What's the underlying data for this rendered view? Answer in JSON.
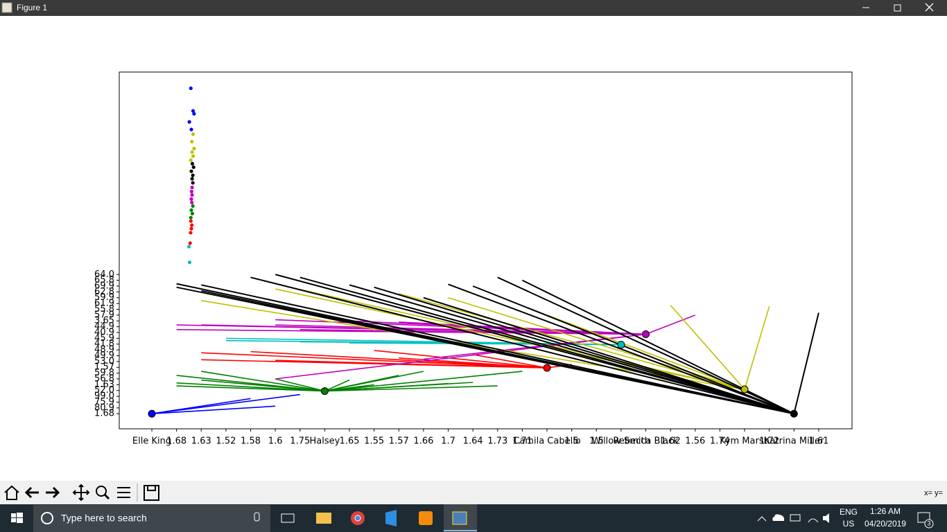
{
  "window": {
    "title": "Figure 1"
  },
  "chart_data": {
    "type": "star",
    "xlim": [
      -1.32,
      28.35
    ],
    "ylim": [
      -2.6,
      58.9
    ],
    "xticks": [
      {
        "value": 0,
        "label": "Elle King"
      },
      {
        "value": 1,
        "label": "1.68"
      },
      {
        "value": 2,
        "label": "1.63"
      },
      {
        "value": 3,
        "label": "1.52"
      },
      {
        "value": 4,
        "label": "1.58"
      },
      {
        "value": 5,
        "label": "1.6"
      },
      {
        "value": 6,
        "label": "1.75"
      },
      {
        "value": 7,
        "label": "Halsey"
      },
      {
        "value": 8,
        "label": "1.65"
      },
      {
        "value": 9,
        "label": "1.55"
      },
      {
        "value": 10,
        "label": "1.57"
      },
      {
        "value": 11,
        "label": "1.66"
      },
      {
        "value": 12,
        "label": "1.7"
      },
      {
        "value": 13,
        "label": "1.64"
      },
      {
        "value": 14,
        "label": "1.73"
      },
      {
        "value": 15,
        "label": "1.71"
      },
      {
        "value": 16,
        "label": "Camila Cabello"
      },
      {
        "value": 17,
        "label": "1.5"
      },
      {
        "value": 18,
        "label": "1.5"
      },
      {
        "value": 19,
        "label": "Willow Smith"
      },
      {
        "value": 20,
        "label": "Rebecca Black"
      },
      {
        "value": 21,
        "label": "1.62"
      },
      {
        "value": 22,
        "label": "1.56"
      },
      {
        "value": 23,
        "label": "1.74"
      },
      {
        "value": 24,
        "label": "Kym Marsh"
      },
      {
        "value": 25,
        "label": "1.72"
      },
      {
        "value": 26,
        "label": "Katrina Miller"
      },
      {
        "value": 27,
        "label": "1.61"
      }
    ],
    "yticks": [
      {
        "value": 0,
        "label": "1.68"
      },
      {
        "value": 1,
        "label": "80.9"
      },
      {
        "value": 2,
        "label": "75.9"
      },
      {
        "value": 3,
        "label": "99.0"
      },
      {
        "value": 4,
        "label": "52.0"
      },
      {
        "value": 5,
        "label": "1.63"
      },
      {
        "value": 6,
        "label": "56.8"
      },
      {
        "value": 7,
        "label": "59.8"
      },
      {
        "value": 8,
        "label": "1.57"
      },
      {
        "value": 9,
        "label": "53.0"
      },
      {
        "value": 10,
        "label": "49.9"
      },
      {
        "value": 11,
        "label": "48.9"
      },
      {
        "value": 12,
        "label": "41.8"
      },
      {
        "value": 13,
        "label": "45.9"
      },
      {
        "value": 14,
        "label": "40.9"
      },
      {
        "value": 15,
        "label": "44.9"
      },
      {
        "value": 16,
        "label": "3.65"
      },
      {
        "value": 17,
        "label": "57.9"
      },
      {
        "value": 18,
        "label": "55.8"
      },
      {
        "value": 19,
        "label": "61.9"
      },
      {
        "value": 20,
        "label": "59.9"
      },
      {
        "value": 21,
        "label": "62.8"
      },
      {
        "value": 22,
        "label": "69.9"
      },
      {
        "value": 23,
        "label": "65.8"
      },
      {
        "value": 24,
        "label": "64.0"
      }
    ],
    "groups": [
      {
        "color": "#0000ff",
        "hub": [
          0,
          0
        ],
        "ends": [
          [
            4,
            2.6
          ],
          [
            6,
            3.3
          ],
          [
            5,
            1.3
          ]
        ]
      },
      {
        "color": "#008000",
        "hub": [
          7,
          3.9
        ],
        "ends": [
          [
            1,
            6.6
          ],
          [
            1,
            5.3
          ],
          [
            1,
            4.8
          ],
          [
            2,
            7.3
          ],
          [
            2,
            5.8
          ],
          [
            5,
            6
          ],
          [
            9,
            5
          ],
          [
            10,
            6.6
          ],
          [
            11,
            7.3
          ],
          [
            12,
            5.2
          ],
          [
            13,
            5.4
          ],
          [
            14,
            4.8
          ],
          [
            15,
            7.3
          ],
          [
            8,
            5.8
          ]
        ]
      },
      {
        "color": "#ff0000",
        "hub": [
          16,
          7.9
        ],
        "ends": [
          [
            2,
            10.5
          ],
          [
            2,
            9.3
          ],
          [
            4,
            10.7
          ],
          [
            5,
            9.2
          ],
          [
            9,
            10.9
          ],
          [
            10,
            9.6
          ],
          [
            13,
            10.2
          ],
          [
            17,
            8.5
          ]
        ]
      },
      {
        "color": "#00bfbf",
        "hub": [
          19,
          11.9
        ],
        "ends": [
          [
            3,
            13
          ],
          [
            3,
            12.6
          ],
          [
            6,
            12.4
          ],
          [
            8,
            12.2
          ]
        ]
      },
      {
        "color": "#bf00bf",
        "hub": [
          20,
          13.7
        ],
        "ends": [
          [
            1,
            15.3
          ],
          [
            1,
            14.5
          ],
          [
            2,
            15.3
          ],
          [
            5,
            16.2
          ],
          [
            5,
            15.3
          ],
          [
            6,
            14.5
          ],
          [
            8,
            16
          ],
          [
            10,
            15.8
          ],
          [
            22,
            17
          ],
          [
            11,
            9.4
          ],
          [
            5,
            6
          ]
        ]
      },
      {
        "color": "#bfbf00",
        "hub": [
          24,
          4.2
        ],
        "ends": [
          [
            2,
            19.5
          ],
          [
            5,
            21.5
          ],
          [
            6,
            21.4
          ],
          [
            10,
            20.7
          ],
          [
            12,
            20
          ],
          [
            21,
            18.7
          ],
          [
            25,
            18.5
          ],
          [
            16,
            17
          ]
        ]
      },
      {
        "color": "#000000",
        "hub": [
          26,
          0
        ],
        "ends": [
          [
            1,
            22.4
          ],
          [
            1,
            21.8
          ],
          [
            2,
            22.2
          ],
          [
            2,
            21.2
          ],
          [
            5,
            24
          ],
          [
            6,
            23.5
          ],
          [
            8,
            22.2
          ],
          [
            9,
            21.8
          ],
          [
            12,
            22.3
          ],
          [
            13,
            22
          ],
          [
            14,
            23.5
          ],
          [
            15,
            23
          ],
          [
            27,
            17.4
          ],
          [
            4,
            23.5
          ],
          [
            11,
            20
          ]
        ]
      }
    ],
    "scatter": [
      {
        "color": "#0000ff",
        "x": [
          1.58,
          1.67,
          1.71,
          1.52,
          1.6
        ],
        "y": [
          56.1,
          52.2,
          51.7,
          50.3,
          49.0
        ]
      },
      {
        "color": "#bfbf00",
        "x": [
          1.67,
          1.62,
          1.71,
          1.63,
          1.67,
          1.58
        ],
        "y": [
          48.2,
          46.9,
          45.7,
          45.1,
          44.4,
          43.7
        ]
      },
      {
        "color": "#000000",
        "x": [
          1.64,
          1.69,
          1.6,
          1.66,
          1.63,
          1.66
        ],
        "y": [
          43.1,
          42.5,
          41.8,
          41.1,
          40.5,
          39.8
        ]
      },
      {
        "color": "#bf00bf",
        "x": [
          1.63,
          1.61,
          1.63,
          1.6,
          1.62
        ],
        "y": [
          39.0,
          38.3,
          37.7,
          37.0,
          36.4
        ]
      },
      {
        "color": "#008000",
        "x": [
          1.66,
          1.6,
          1.64,
          1.58
        ],
        "y": [
          35.8,
          35.1,
          34.5,
          33.8
        ]
      },
      {
        "color": "#ff0000",
        "x": [
          1.58,
          1.62,
          1.6,
          1.57,
          1.55
        ],
        "y": [
          33.2,
          32.5,
          31.9,
          31.2,
          29.4
        ]
      },
      {
        "color": "#00bfbf",
        "x": [
          1.5,
          1.53
        ],
        "y": [
          28.8,
          26.1
        ]
      }
    ]
  },
  "toolbar": {
    "status": "x= y="
  },
  "taskbar": {
    "search_placeholder": "Type here to search",
    "language": "ENG",
    "region": "US",
    "time": "1:26 AM",
    "date": "04/20/2019",
    "notifications": "3"
  }
}
